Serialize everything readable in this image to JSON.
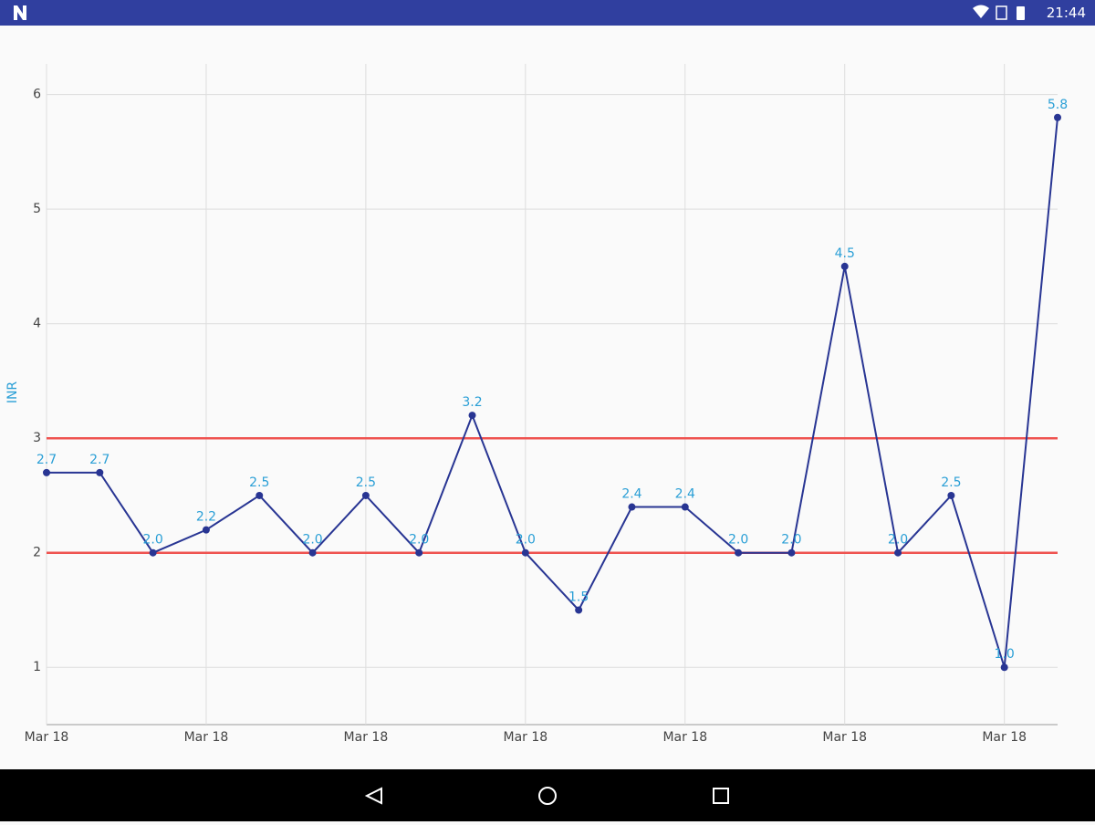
{
  "status_bar": {
    "time": "21:44"
  },
  "chart_data": {
    "type": "line",
    "y_label": "INR",
    "categories": [
      "Mar 18",
      null,
      null,
      "Mar 18",
      null,
      null,
      "Mar 18",
      null,
      null,
      "Mar 18",
      null,
      null,
      "Mar 18",
      null,
      null,
      "Mar 18",
      null,
      null,
      "Mar 18",
      null
    ],
    "values": [
      2.7,
      2.7,
      2.0,
      2.2,
      2.5,
      2.0,
      2.5,
      2.0,
      3.2,
      2.0,
      1.5,
      2.4,
      2.4,
      2.0,
      2.0,
      4.5,
      2.0,
      2.5,
      1.0,
      5.8
    ],
    "value_labels": [
      "2.7",
      "2.7",
      "2.0",
      "2.2",
      "2.5",
      "2.0",
      "2.5",
      "2.0",
      "3.2",
      "2.0",
      "1.5",
      "2.4",
      "2.4",
      "2.0",
      "2.0",
      "4.5",
      "2.0",
      "2.5",
      "1.0",
      "5.8"
    ],
    "color": "#283593",
    "label_color": "#2a9fd6",
    "ylim": [
      0.5,
      6.3
    ],
    "yticks": [
      1,
      2,
      3,
      4,
      5,
      6
    ],
    "grid": true,
    "limit_lines": [
      {
        "value": 2,
        "color": "#ef5350"
      },
      {
        "value": 3,
        "color": "#ef5350"
      }
    ]
  }
}
